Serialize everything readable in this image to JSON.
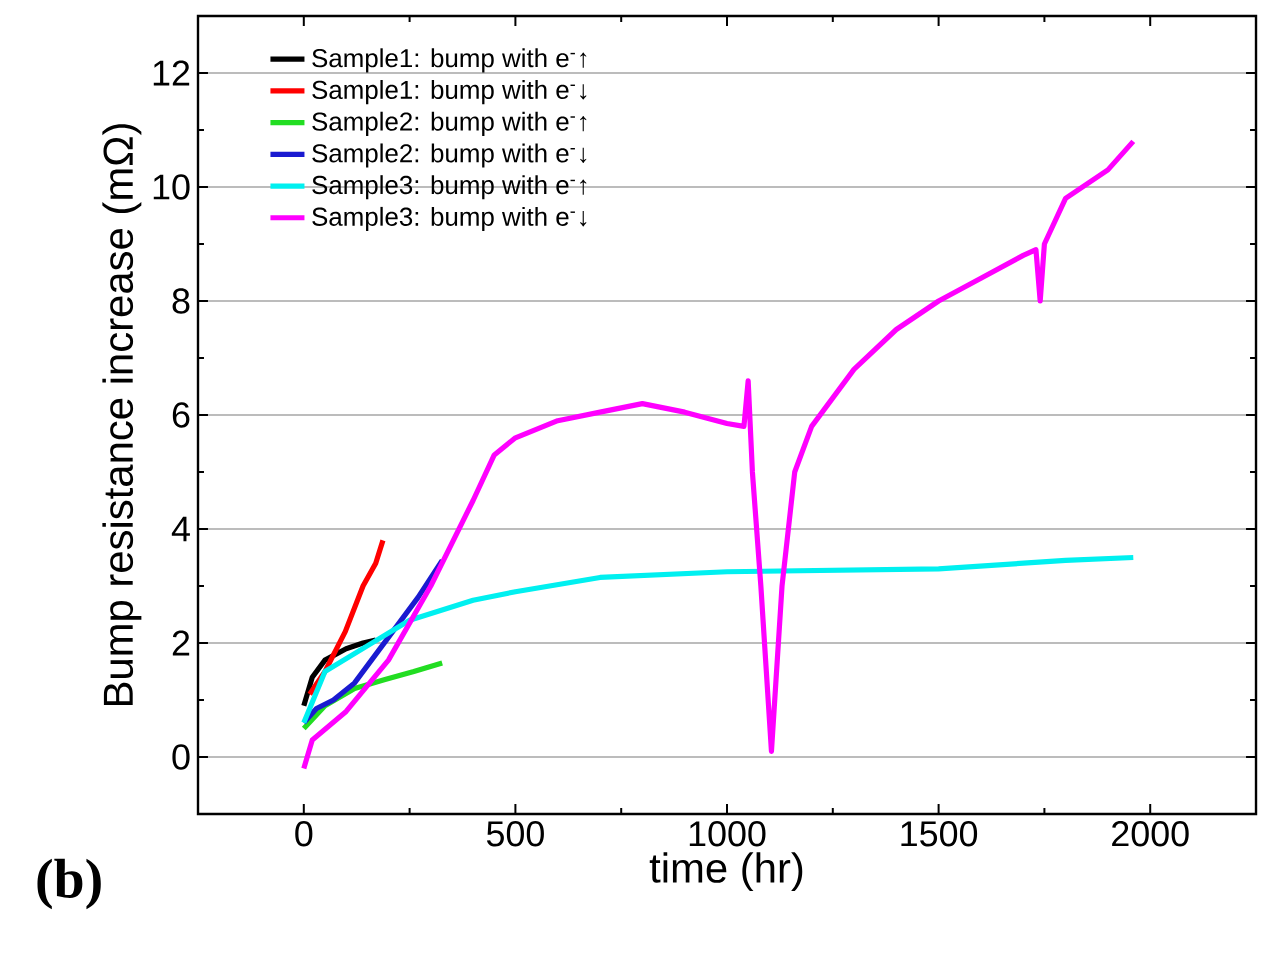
{
  "chart_data": {
    "type": "line",
    "xlabel": "time (hr)",
    "ylabel": "Bump resistance increase (mΩ)",
    "annotations": [
      "(b)"
    ],
    "xlim": [
      -250,
      2250
    ],
    "ylim": [
      -1,
      13
    ],
    "xticks": [
      0,
      500,
      1000,
      1500,
      2000
    ],
    "yticks": [
      0,
      2,
      4,
      6,
      8,
      10,
      12
    ],
    "grid": "y",
    "legend": "top left",
    "series": [
      {
        "name": "Sample1: bump with e$^{-}$↑",
        "color": "#000000",
        "x": [
          0,
          20,
          50,
          100,
          140,
          170
        ],
        "values": [
          0.9,
          1.4,
          1.7,
          1.9,
          2.0,
          2.05
        ]
      },
      {
        "name": "Sample1: bump with e$^{-}$↓",
        "color": "#ff0000",
        "x": [
          14,
          50,
          98,
          140,
          170,
          187
        ],
        "values": [
          1.1,
          1.5,
          2.2,
          3.0,
          3.4,
          3.8
        ]
      },
      {
        "name": "Sample2: bump with e$^{-}$↑",
        "color": "#22dd22",
        "x": [
          0,
          50,
          120,
          192,
          260,
          327
        ],
        "values": [
          0.5,
          0.9,
          1.2,
          1.36,
          1.5,
          1.65
        ]
      },
      {
        "name": "Sample2: bump with e$^{-}$↓",
        "color": "#1a1ad0",
        "x": [
          0,
          30,
          70,
          120,
          210,
          270,
          327
        ],
        "values": [
          0.6,
          0.85,
          1.0,
          1.3,
          2.2,
          2.8,
          3.45
        ]
      },
      {
        "name": "Sample3: bump with e$^{-}$↑",
        "color": "#00f0f0",
        "x": [
          0,
          50,
          150,
          250,
          400,
          500,
          700,
          1000,
          1500,
          1800,
          1960
        ],
        "values": [
          0.6,
          1.5,
          1.95,
          2.4,
          2.75,
          2.9,
          3.15,
          3.25,
          3.3,
          3.45,
          3.5
        ]
      },
      {
        "name": "Sample3: bump with e$^{-}$↓",
        "color": "#ff00ff",
        "x": [
          0,
          20,
          100,
          200,
          300,
          400,
          450,
          500,
          600,
          700,
          800,
          900,
          1000,
          1040,
          1050,
          1060,
          1080,
          1105,
          1130,
          1160,
          1200,
          1300,
          1400,
          1500,
          1600,
          1700,
          1730,
          1740,
          1750,
          1800,
          1900,
          1960
        ],
        "values": [
          -0.2,
          0.3,
          0.8,
          1.7,
          3.0,
          4.5,
          5.3,
          5.6,
          5.9,
          6.05,
          6.2,
          6.05,
          5.85,
          5.8,
          6.6,
          5.0,
          3.0,
          0.1,
          3.0,
          5.0,
          5.8,
          6.8,
          7.5,
          8.0,
          8.4,
          8.8,
          8.9,
          8.0,
          9.0,
          9.8,
          10.3,
          10.8
        ]
      }
    ]
  }
}
